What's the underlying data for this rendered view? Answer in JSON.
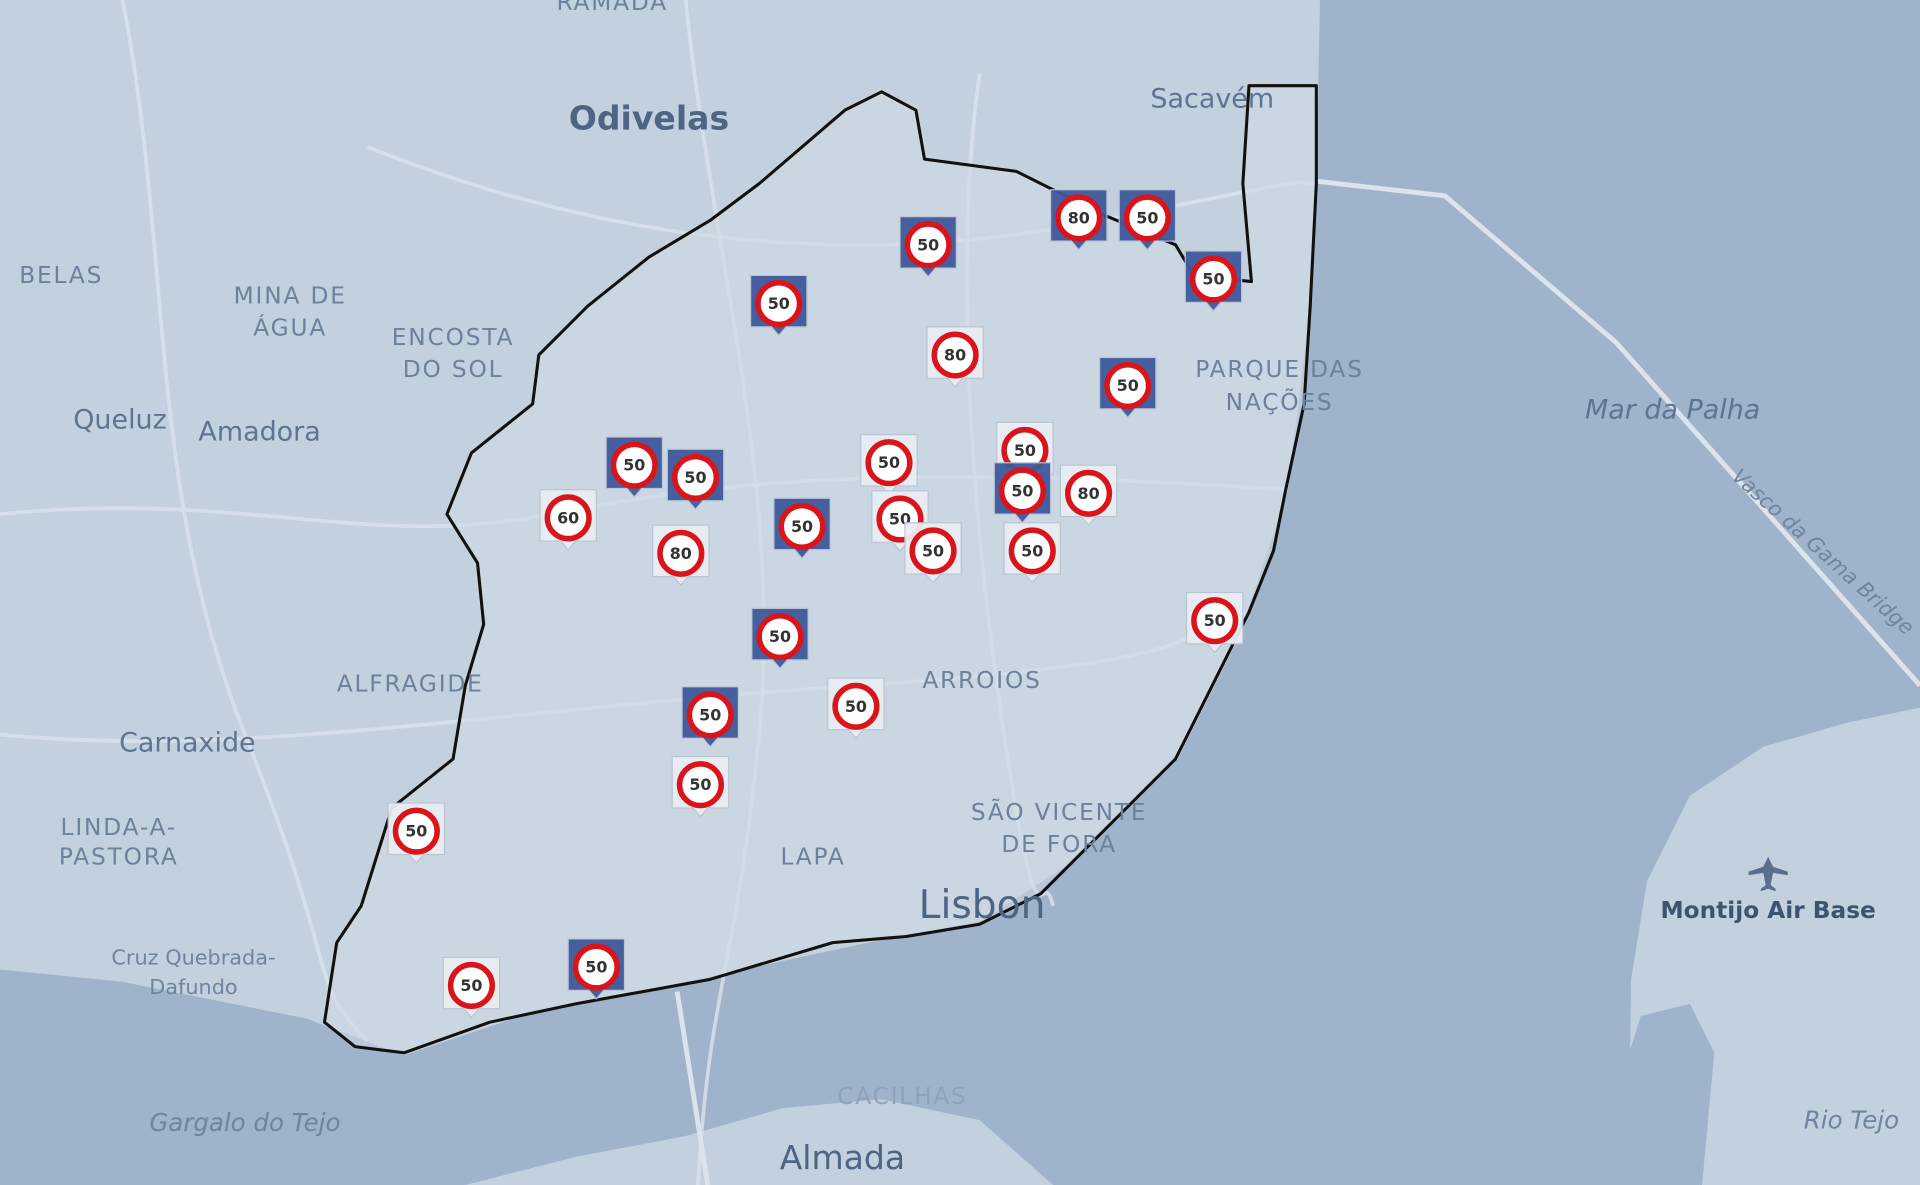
{
  "places": [
    "RAMADA",
    "Odivelas",
    "Sacavém",
    "BELAS",
    "MINA DE",
    "ÁGUA",
    "ENCOSTA",
    "DO SOL",
    "Queluz",
    "Amadora",
    "PARQUE DAS",
    "NAÇÕES",
    "Mar da Palha",
    "Vasco da Gama Bridge",
    "ALFRAGIDE",
    "Carnaxide",
    "ARROIOS",
    "LINDA-A-",
    "PASTORA",
    "SÃO VICENTE",
    "DE FORA",
    "LAPA",
    "Lisbon",
    "Cruz Quebrada-",
    "Dafundo",
    "Montijo Air Base",
    "Gargalo do Tejo",
    "CACILHAS",
    "Almada",
    "Rio Tejo"
  ],
  "markers": [
    {
      "limit": 50,
      "color": "#3f5a9c"
    },
    {
      "limit": 50,
      "color": "#3f5a9c"
    },
    {
      "limit": 80,
      "color": "#3f5a9c"
    },
    {
      "limit": 50,
      "color": "#3f5a9c"
    },
    {
      "limit": 50,
      "color": "#3f5a9c"
    },
    {
      "limit": 80,
      "color": "#e9eef4"
    },
    {
      "limit": 50,
      "color": "#3f5a9c"
    },
    {
      "limit": 50,
      "color": "#3f5a9c"
    },
    {
      "limit": 50,
      "color": "#3f5a9c"
    },
    {
      "limit": 60,
      "color": "#e9eef4"
    },
    {
      "limit": 80,
      "color": "#e9eef4"
    },
    {
      "limit": 50,
      "color": "#e9eef4"
    },
    {
      "limit": 50,
      "color": "#e9eef4"
    },
    {
      "limit": 50,
      "color": "#3f5a9c"
    },
    {
      "limit": 80,
      "color": "#e9eef4"
    },
    {
      "limit": 50,
      "color": "#3f5a9c"
    },
    {
      "limit": 50,
      "color": "#e9eef4"
    },
    {
      "limit": 50,
      "color": "#e9eef4"
    },
    {
      "limit": 50,
      "color": "#e9eef4"
    },
    {
      "limit": 50,
      "color": "#e9eef4"
    },
    {
      "limit": 50,
      "color": "#3f5a9c"
    },
    {
      "limit": 50,
      "color": "#3f5a9c"
    },
    {
      "limit": 50,
      "color": "#e9eef4"
    },
    {
      "limit": 50,
      "color": "#e9eef4"
    },
    {
      "limit": 50,
      "color": "#e9eef4"
    },
    {
      "limit": 50,
      "color": "#e9eef4"
    },
    {
      "limit": 50,
      "color": "#3f5a9c"
    }
  ]
}
